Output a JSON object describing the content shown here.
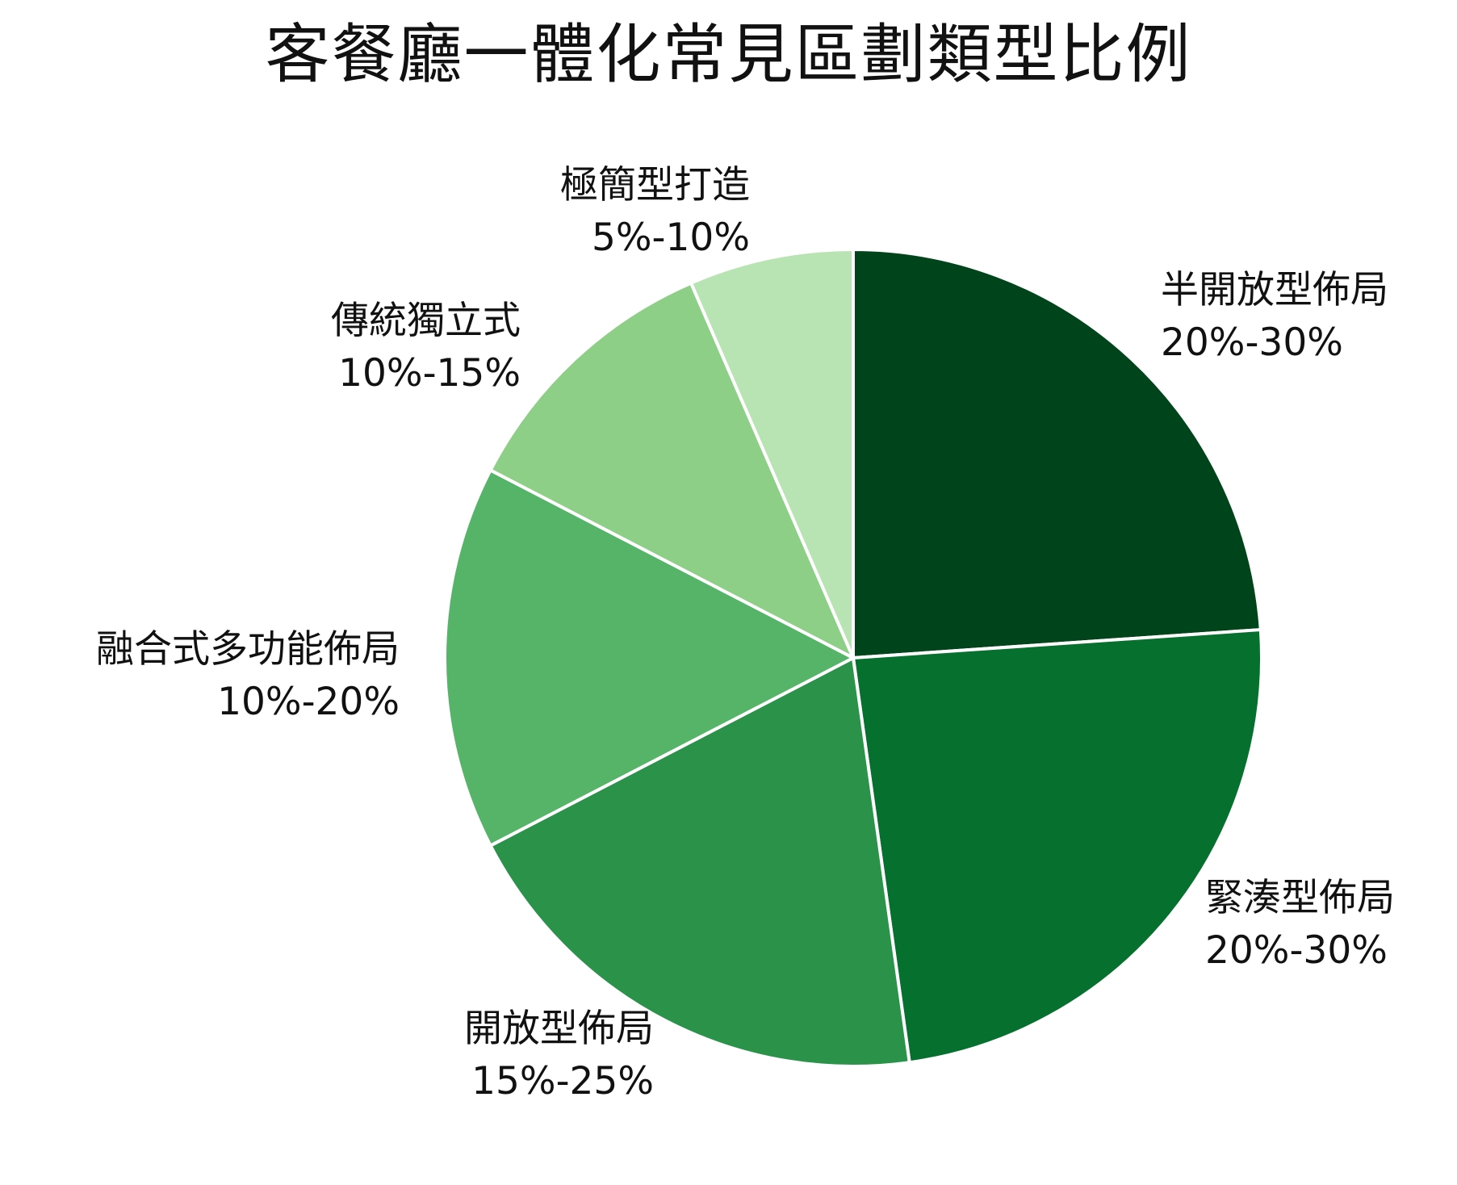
{
  "chart_data": {
    "type": "pie",
    "title": "客餐廳一體化常見區劃類型比例",
    "slices": [
      {
        "name": "半開放型佈局",
        "range_label": "20%-30%",
        "value": 23.9,
        "color": "#00441b"
      },
      {
        "name": "緊湊型佈局",
        "range_label": "20%-30%",
        "value": 23.9,
        "color": "#06702e"
      },
      {
        "name": "開放型佈局",
        "range_label": "15%-25%",
        "value": 19.6,
        "color": "#2b924a"
      },
      {
        "name": "融合式多功能佈局",
        "range_label": "10%-20%",
        "value": 15.2,
        "color": "#56b468"
      },
      {
        "name": "傳統獨立式",
        "range_label": "10%-15%",
        "value": 10.9,
        "color": "#8ecf88"
      },
      {
        "name": "極簡型打造",
        "range_label": "5%-10%",
        "value": 6.5,
        "color": "#b8e3b2"
      }
    ],
    "start_angle": "top",
    "direction": "clockwise",
    "border_color": "#ffffff"
  }
}
